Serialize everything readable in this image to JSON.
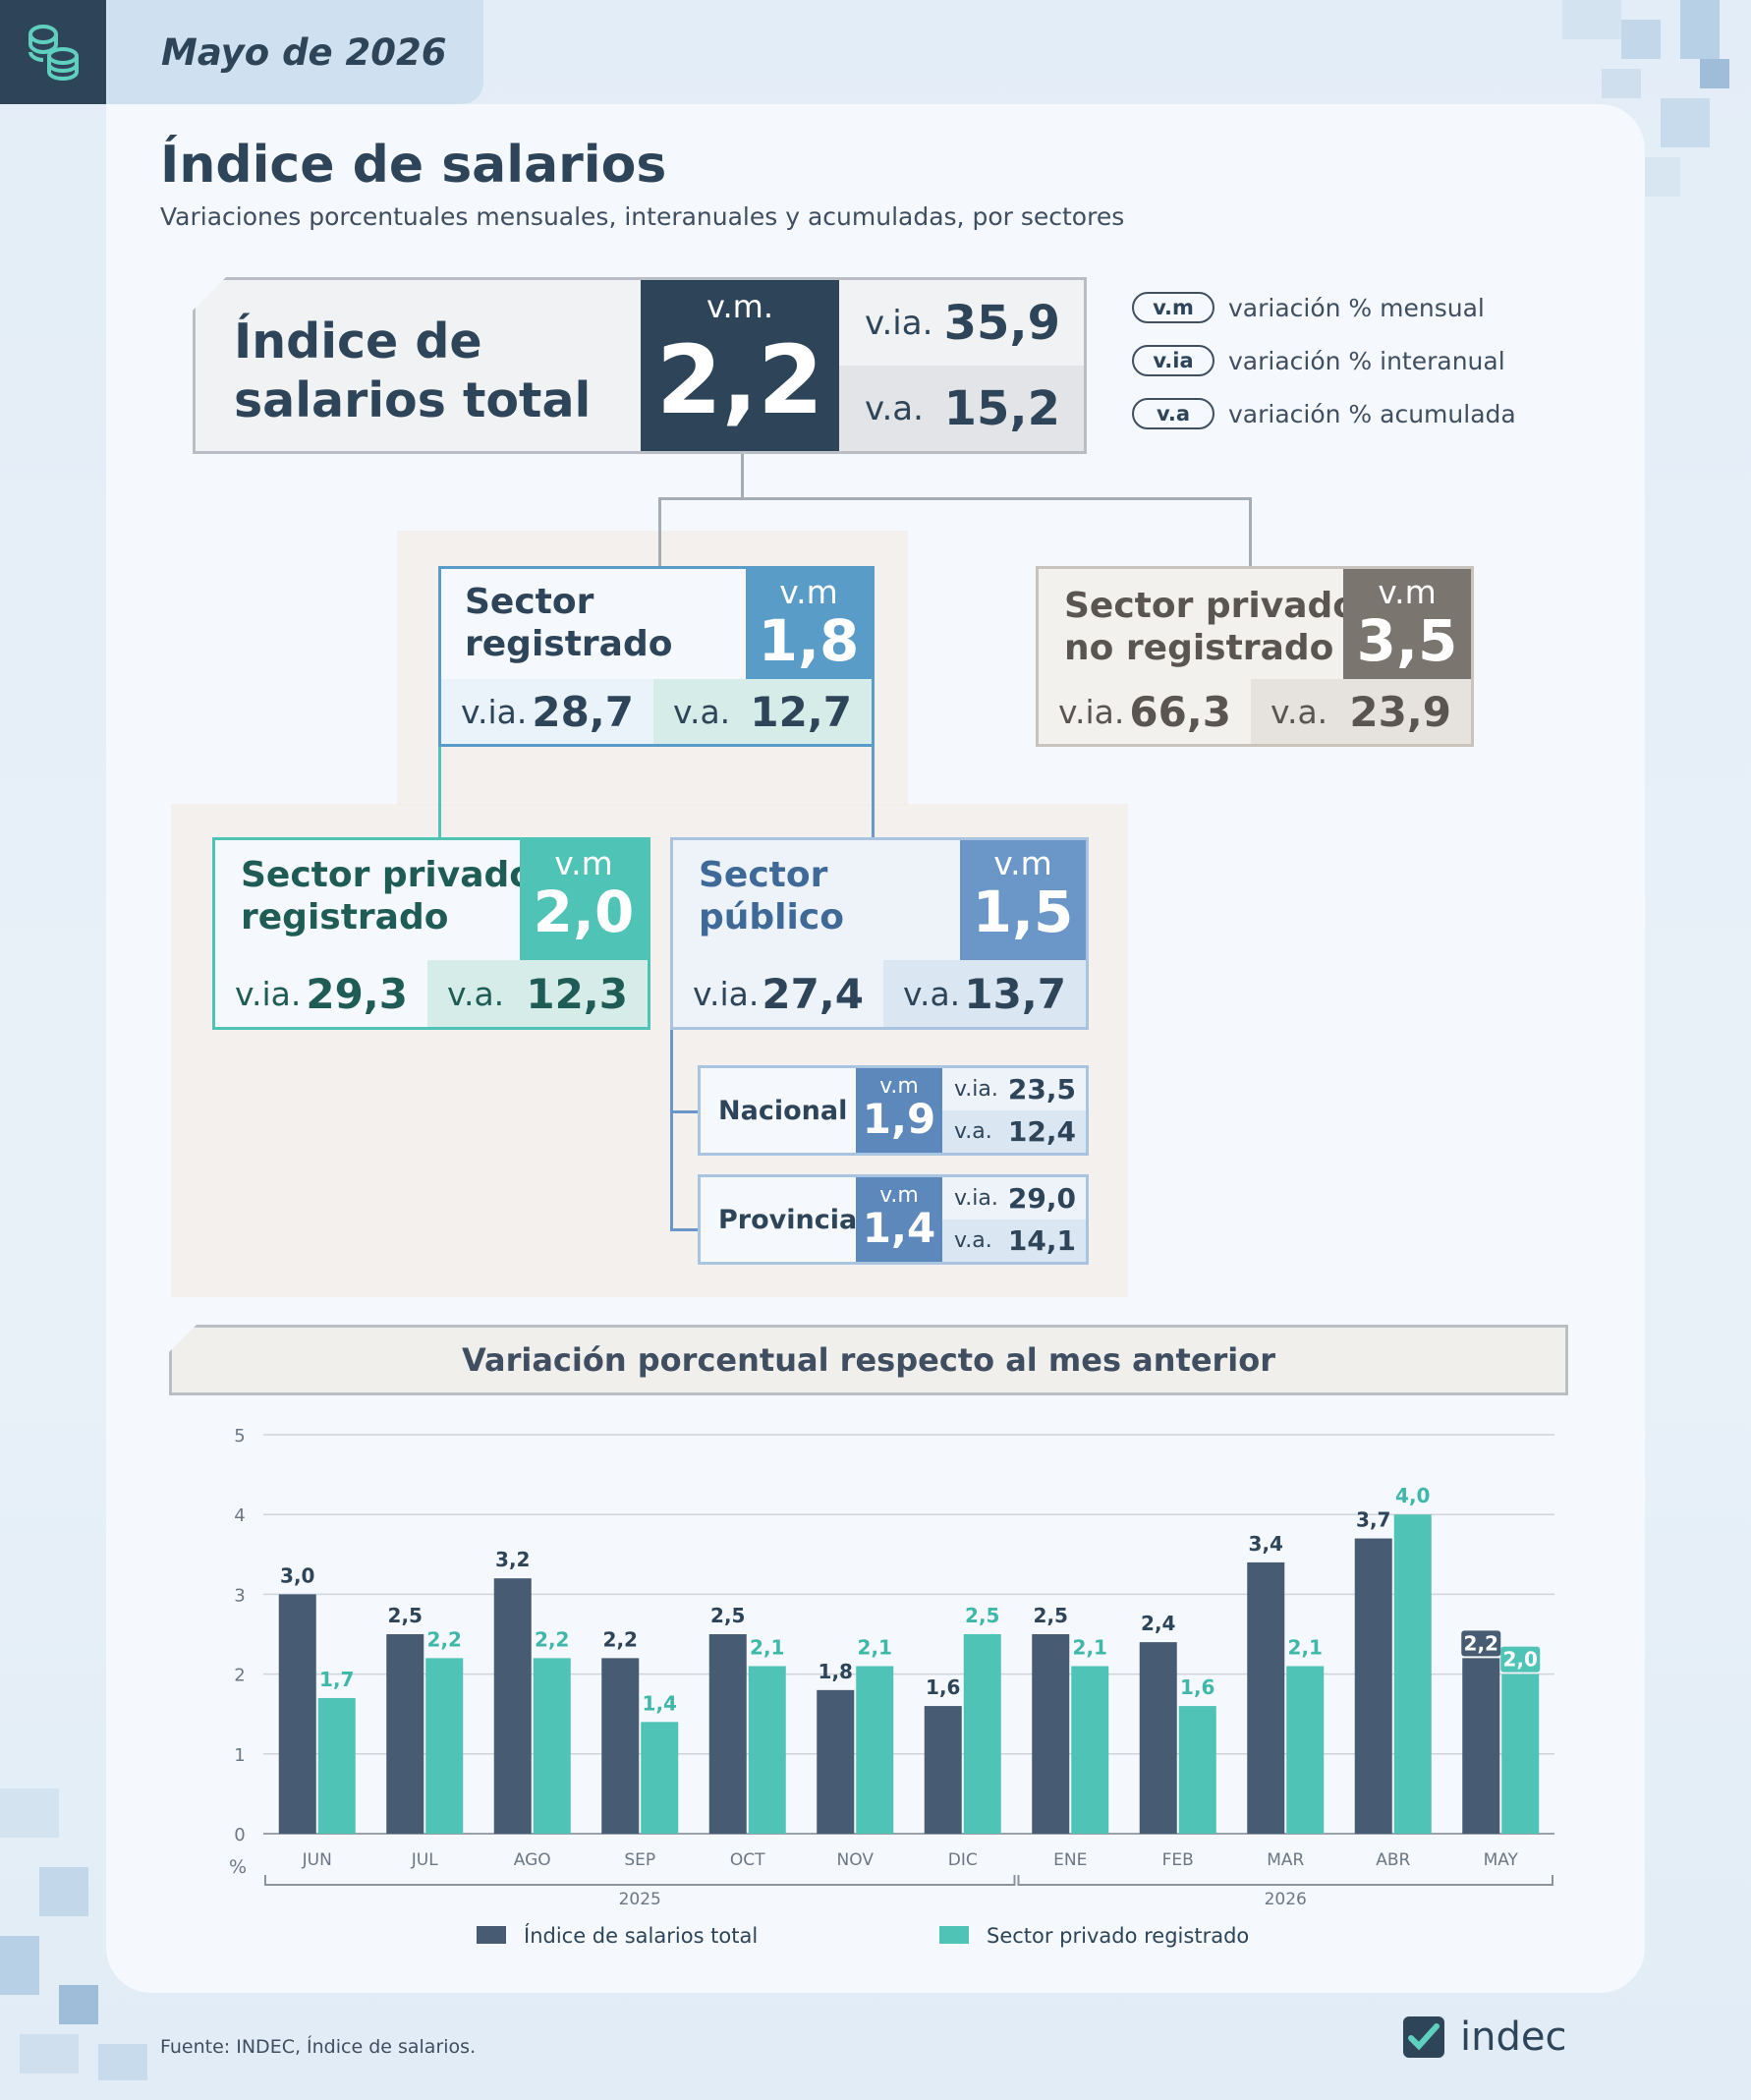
{
  "header": {
    "date": "Mayo de 2026",
    "icon": "coins-stack-icon"
  },
  "title": "Índice de salarios",
  "subtitle": "Variaciones porcentuales mensuales, interanuales y acumuladas, por sectores",
  "total": {
    "label_line1": "Índice de",
    "label_line2": "salarios total",
    "vm_label": "v.m.",
    "vm": "2,2",
    "via_label": "v.ia.",
    "via": "35,9",
    "va_label": "v.a.",
    "va": "15,2"
  },
  "legend_abbr": [
    {
      "abbr": "v.m",
      "text": "variación % mensual"
    },
    {
      "abbr": "v.ia",
      "text": "variación % interanual"
    },
    {
      "abbr": "v.a",
      "text": "variación % acumulada"
    }
  ],
  "labels": {
    "vm": "v.m",
    "via": "v.ia.",
    "va": "v.a."
  },
  "sectors": {
    "registrado": {
      "line1": "Sector",
      "line2": "registrado",
      "vm": "1,8",
      "via": "28,7",
      "va": "12,7",
      "color": "#5a9cc8"
    },
    "no_registrado": {
      "line1": "Sector privado",
      "line2": "no registrado",
      "vm": "3,5",
      "via": "66,3",
      "va": "23,9",
      "color": "#7a756f"
    },
    "privado_registrado": {
      "line1": "Sector privado",
      "line2": "registrado",
      "vm": "2,0",
      "via": "29,3",
      "va": "12,3",
      "color": "#4fc3b5"
    },
    "publico": {
      "line1": "Sector",
      "line2": "público",
      "vm": "1,5",
      "via": "27,4",
      "va": "13,7",
      "color": "#6a96c8"
    },
    "nacional": {
      "name": "Nacional",
      "vm": "1,9",
      "via": "23,5",
      "va": "12,4"
    },
    "provincial": {
      "name": "Provincial",
      "vm": "1,4",
      "via": "29,0",
      "va": "14,1"
    }
  },
  "chart_data": {
    "type": "bar",
    "title": "Variación porcentual respecto al mes anterior",
    "ylabel": "%",
    "ylim": [
      0,
      5
    ],
    "yticks": [
      "0",
      "1",
      "2",
      "3",
      "4",
      "5"
    ],
    "categories": [
      "JUN",
      "JUL",
      "AGO",
      "SEP",
      "OCT",
      "NOV",
      "DIC",
      "ENE",
      "FEB",
      "MAR",
      "ABR",
      "MAY"
    ],
    "year_groups": [
      {
        "label": "2025",
        "from": 0,
        "to": 6
      },
      {
        "label": "2026",
        "from": 7,
        "to": 11
      }
    ],
    "series": [
      {
        "name": "Índice de salarios total",
        "color": "#475b72",
        "values": [
          3.0,
          2.5,
          3.2,
          2.2,
          2.5,
          1.8,
          1.6,
          2.5,
          2.4,
          3.4,
          3.7,
          2.2
        ],
        "labels": [
          "3,0",
          "2,5",
          "3,2",
          "2,2",
          "2,5",
          "1,8",
          "1,6",
          "2,5",
          "2,4",
          "3,4",
          "3,7",
          "2,2"
        ]
      },
      {
        "name": "Sector privado registrado",
        "color": "#4fc3b5",
        "values": [
          1.7,
          2.2,
          2.2,
          1.4,
          2.1,
          2.1,
          2.5,
          2.1,
          1.6,
          2.1,
          4.0,
          2.0
        ],
        "labels": [
          "1,7",
          "2,2",
          "2,2",
          "1,4",
          "2,1",
          "2,1",
          "2,5",
          "2,1",
          "1,6",
          "2,1",
          "4,0",
          "2,0"
        ]
      }
    ],
    "grid": true,
    "legend": "bottom"
  },
  "footer": {
    "source": "Fuente: INDEC, Índice de salarios.",
    "logo": "indec"
  }
}
